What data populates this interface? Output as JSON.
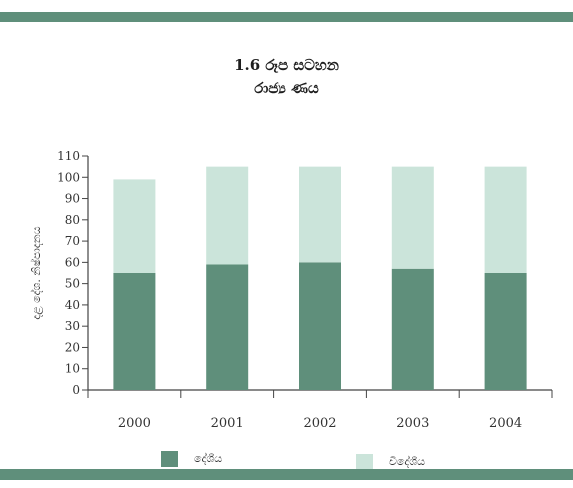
{
  "chart_data": {
    "type": "bar",
    "stacked": true,
    "title": "1.6 රූප සටහන",
    "subtitle": "රාජ්‍ය ණය",
    "ylabel": "දළ දේශ. නිෂ්පාදනය",
    "xlabel": "",
    "categories": [
      "2000",
      "2001",
      "2002",
      "2003",
      "2004"
    ],
    "series": [
      {
        "name": "දේශීය",
        "values": [
          55,
          59,
          60,
          57,
          55
        ],
        "color": "#5f8f7b"
      },
      {
        "name": "විදේශීය",
        "values": [
          44,
          46,
          45,
          48,
          50
        ],
        "color": "#cbe4da"
      }
    ],
    "ylim": [
      0,
      110
    ],
    "yticks": [
      0,
      10,
      20,
      30,
      40,
      50,
      60,
      70,
      80,
      90,
      100,
      110
    ],
    "grid": false,
    "legend": "bottom"
  }
}
